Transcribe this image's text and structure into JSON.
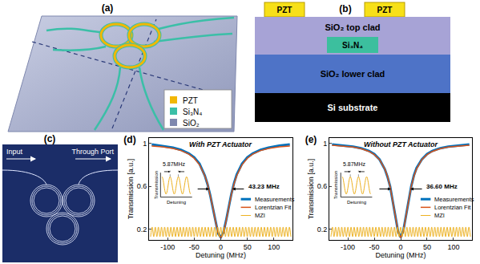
{
  "panels": {
    "a": {
      "label": "(a)",
      "legend": [
        {
          "name": "PZT",
          "color": "#f2b705"
        },
        {
          "name": "Si₃N₄",
          "color": "#3bbfa7"
        },
        {
          "name": "SiO₂",
          "color": "#7f88ae"
        }
      ]
    },
    "b": {
      "label": "(b)",
      "pzt": [
        "PZT",
        "PZT"
      ],
      "top_clad": "SiO₂ top clad",
      "core": "Si₃N₄",
      "lower_clad": "SiO₂ lower clad",
      "substrate": "Si substrate"
    },
    "c": {
      "label": "(c)",
      "input": "Input",
      "through": "Through Port"
    }
  },
  "chart_data": [
    {
      "type": "line",
      "title": "With PZT Actuator",
      "xlabel": "Detuning (MHz)",
      "ylabel": "Transmission [a.u.]",
      "xlim": [
        -135,
        135
      ],
      "ylim": [
        0.1,
        1.05
      ],
      "xticks": [
        -100,
        -50,
        0,
        50,
        100
      ],
      "yticks": [
        0.2,
        0.6,
        1
      ],
      "grid": false,
      "legend": "right",
      "annotations": {
        "panel": "(d)",
        "fwhm": {
          "value": 43.23,
          "label": "43.23 MHz"
        },
        "fsr": {
          "value": 5.87,
          "label": "5.87MHz"
        },
        "inset_xlabel": "Detuning",
        "inset_ylabel": "Transmission"
      },
      "series": [
        {
          "name": "Measurements",
          "color": "#0072bd",
          "line_style": "solid",
          "x": [
            -130,
            -110,
            -90,
            -75,
            -60,
            -50,
            -40,
            -30,
            -25,
            -20,
            -15,
            -10,
            -5,
            0,
            5,
            10,
            15,
            20,
            25,
            30,
            40,
            50,
            60,
            75,
            90,
            110,
            130
          ],
          "values": [
            0.99,
            0.975,
            0.96,
            0.94,
            0.905,
            0.87,
            0.81,
            0.7,
            0.62,
            0.52,
            0.4,
            0.27,
            0.16,
            0.125,
            0.17,
            0.28,
            0.41,
            0.53,
            0.63,
            0.71,
            0.81,
            0.87,
            0.905,
            0.94,
            0.96,
            0.98,
            0.99
          ]
        },
        {
          "name": "Lorentzian Fit",
          "color": "#d95319",
          "line_style": "solid",
          "x": [
            -130,
            -110,
            -90,
            -75,
            -60,
            -50,
            -40,
            -30,
            -25,
            -20,
            -15,
            -10,
            -5,
            0,
            5,
            10,
            15,
            20,
            25,
            30,
            40,
            50,
            60,
            75,
            90,
            110,
            130
          ],
          "values": [
            0.976,
            0.967,
            0.952,
            0.933,
            0.899,
            0.861,
            0.801,
            0.699,
            0.624,
            0.526,
            0.406,
            0.275,
            0.165,
            0.12,
            0.165,
            0.275,
            0.406,
            0.526,
            0.624,
            0.699,
            0.801,
            0.861,
            0.899,
            0.933,
            0.952,
            0.967,
            0.976
          ]
        },
        {
          "name": "MZI",
          "color": "#edb120",
          "line_style": "smooth",
          "x": [
            -132.075,
            -129.14,
            -126.205,
            -123.27,
            -120.335,
            -117.4,
            -114.465,
            -111.53,
            -108.595,
            -105.66,
            -102.725,
            -99.79,
            -96.855,
            -93.92,
            -90.985,
            -88.05,
            -85.115,
            -82.18,
            -79.245,
            -76.31,
            -73.375,
            -70.44,
            -67.505,
            -64.57,
            -61.635,
            -58.7,
            -55.765,
            -52.83,
            -49.895,
            -46.96,
            -44.025,
            -41.09,
            -38.155,
            -35.22,
            -32.285,
            -29.35,
            -26.415,
            -23.48,
            -20.545,
            -17.61,
            -14.675,
            -11.74,
            -8.805,
            -5.87,
            -2.935,
            0,
            2.935,
            5.87,
            8.805,
            11.74,
            14.675,
            17.61,
            20.545,
            23.48,
            26.415,
            29.35,
            32.285,
            35.22,
            38.155,
            41.09,
            44.025,
            46.96,
            49.895,
            52.83,
            55.765,
            58.7,
            61.635,
            64.57,
            67.505,
            70.44,
            73.375,
            76.31,
            79.245,
            82.18,
            85.115,
            88.05,
            90.985,
            93.92,
            96.855,
            99.79,
            102.725,
            105.66,
            108.595,
            111.53,
            114.465,
            117.4,
            120.335,
            123.27,
            126.205,
            129.14,
            132.075
          ],
          "values": [
            0.13,
            0.22,
            0.13,
            0.22,
            0.13,
            0.22,
            0.13,
            0.22,
            0.13,
            0.22,
            0.13,
            0.22,
            0.13,
            0.22,
            0.13,
            0.22,
            0.13,
            0.22,
            0.13,
            0.22,
            0.13,
            0.22,
            0.13,
            0.22,
            0.13,
            0.22,
            0.13,
            0.22,
            0.13,
            0.22,
            0.13,
            0.22,
            0.13,
            0.22,
            0.13,
            0.22,
            0.13,
            0.22,
            0.13,
            0.22,
            0.13,
            0.22,
            0.13,
            0.22,
            0.13,
            0.22,
            0.13,
            0.22,
            0.13,
            0.22,
            0.13,
            0.22,
            0.13,
            0.22,
            0.13,
            0.22,
            0.13,
            0.22,
            0.13,
            0.22,
            0.13,
            0.22,
            0.13,
            0.22,
            0.13,
            0.22,
            0.13,
            0.22,
            0.13,
            0.22,
            0.13,
            0.22,
            0.13,
            0.22,
            0.13,
            0.22,
            0.13,
            0.22,
            0.13,
            0.22,
            0.13,
            0.22,
            0.13,
            0.22,
            0.13,
            0.22,
            0.13,
            0.22,
            0.13,
            0.22,
            0.13
          ]
        }
      ]
    },
    {
      "type": "line",
      "title": "Without PZT Actuator",
      "xlabel": "Detuning (MHz)",
      "ylabel": "Transmission [a.u.]",
      "xlim": [
        -135,
        135
      ],
      "ylim": [
        0.1,
        1.05
      ],
      "xticks": [
        -100,
        -50,
        0,
        50,
        100
      ],
      "yticks": [
        0.2,
        0.6,
        1
      ],
      "grid": false,
      "legend": "right",
      "annotations": {
        "panel": "(e)",
        "fwhm": {
          "value": 36.6,
          "label": "36.60 MHz"
        },
        "fsr": {
          "value": 5.87,
          "label": "5.87MHz"
        },
        "inset_xlabel": "Detuning",
        "inset_ylabel": "Transmission"
      },
      "series": [
        {
          "name": "Measurements",
          "color": "#0072bd",
          "line_style": "solid",
          "x": [
            -130,
            -110,
            -90,
            -75,
            -60,
            -50,
            -40,
            -30,
            -25,
            -20,
            -15,
            -10,
            -5,
            0,
            5,
            10,
            15,
            20,
            25,
            30,
            40,
            50,
            60,
            75,
            90,
            110,
            130
          ],
          "values": [
            0.99,
            0.98,
            0.97,
            0.955,
            0.93,
            0.9,
            0.85,
            0.76,
            0.69,
            0.6,
            0.47,
            0.32,
            0.18,
            0.125,
            0.185,
            0.33,
            0.48,
            0.6,
            0.7,
            0.77,
            0.85,
            0.9,
            0.93,
            0.955,
            0.97,
            0.98,
            0.99
          ]
        },
        {
          "name": "Lorentzian Fit",
          "color": "#d95319",
          "line_style": "solid",
          "x": [
            -130,
            -110,
            -90,
            -75,
            -60,
            -50,
            -40,
            -30,
            -25,
            -20,
            -15,
            -10,
            -5,
            0,
            5,
            10,
            15,
            20,
            25,
            30,
            40,
            50,
            60,
            75,
            90,
            110,
            130
          ],
          "values": [
            0.983,
            0.976,
            0.965,
            0.951,
            0.925,
            0.896,
            0.848,
            0.761,
            0.693,
            0.599,
            0.474,
            0.322,
            0.181,
            0.12,
            0.181,
            0.322,
            0.474,
            0.599,
            0.693,
            0.761,
            0.848,
            0.896,
            0.925,
            0.951,
            0.965,
            0.976,
            0.983
          ]
        },
        {
          "name": "MZI",
          "color": "#edb120",
          "line_style": "smooth",
          "x": [
            -132.075,
            -129.14,
            -126.205,
            -123.27,
            -120.335,
            -117.4,
            -114.465,
            -111.53,
            -108.595,
            -105.66,
            -102.725,
            -99.79,
            -96.855,
            -93.92,
            -90.985,
            -88.05,
            -85.115,
            -82.18,
            -79.245,
            -76.31,
            -73.375,
            -70.44,
            -67.505,
            -64.57,
            -61.635,
            -58.7,
            -55.765,
            -52.83,
            -49.895,
            -46.96,
            -44.025,
            -41.09,
            -38.155,
            -35.22,
            -32.285,
            -29.35,
            -26.415,
            -23.48,
            -20.545,
            -17.61,
            -14.675,
            -11.74,
            -8.805,
            -5.87,
            -2.935,
            0,
            2.935,
            5.87,
            8.805,
            11.74,
            14.675,
            17.61,
            20.545,
            23.48,
            26.415,
            29.35,
            32.285,
            35.22,
            38.155,
            41.09,
            44.025,
            46.96,
            49.895,
            52.83,
            55.765,
            58.7,
            61.635,
            64.57,
            67.505,
            70.44,
            73.375,
            76.31,
            79.245,
            82.18,
            85.115,
            88.05,
            90.985,
            93.92,
            96.855,
            99.79,
            102.725,
            105.66,
            108.595,
            111.53,
            114.465,
            117.4,
            120.335,
            123.27,
            126.205,
            129.14,
            132.075
          ],
          "values": [
            0.13,
            0.22,
            0.13,
            0.22,
            0.13,
            0.22,
            0.13,
            0.22,
            0.13,
            0.22,
            0.13,
            0.22,
            0.13,
            0.22,
            0.13,
            0.22,
            0.13,
            0.22,
            0.13,
            0.22,
            0.13,
            0.22,
            0.13,
            0.22,
            0.13,
            0.22,
            0.13,
            0.22,
            0.13,
            0.22,
            0.13,
            0.22,
            0.13,
            0.22,
            0.13,
            0.22,
            0.13,
            0.22,
            0.13,
            0.22,
            0.13,
            0.22,
            0.13,
            0.22,
            0.13,
            0.22,
            0.13,
            0.22,
            0.13,
            0.22,
            0.13,
            0.22,
            0.13,
            0.22,
            0.13,
            0.22,
            0.13,
            0.22,
            0.13,
            0.22,
            0.13,
            0.22,
            0.13,
            0.22,
            0.13,
            0.22,
            0.13,
            0.22,
            0.13,
            0.22,
            0.13,
            0.22,
            0.13,
            0.22,
            0.13,
            0.22,
            0.13,
            0.22,
            0.13,
            0.22,
            0.13,
            0.22,
            0.13,
            0.22,
            0.13,
            0.22,
            0.13,
            0.22,
            0.13,
            0.22,
            0.13
          ]
        }
      ]
    }
  ]
}
